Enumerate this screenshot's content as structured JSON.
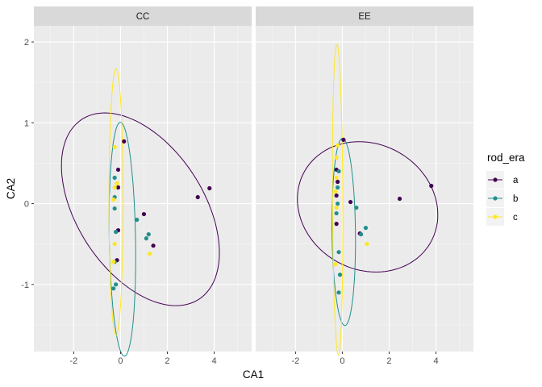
{
  "chart_data": {
    "type": "scatter",
    "xlabel": "CA1",
    "ylabel": "CA2",
    "xlim": [
      -3.7,
      5.6
    ],
    "ylim": [
      -1.83,
      2.2
    ],
    "xticks": [
      -2,
      0,
      2,
      4
    ],
    "yticks": [
      -1,
      0,
      1,
      2
    ],
    "grid": true,
    "legend": {
      "title": "rod_era",
      "position": "right"
    },
    "colors": {
      "a": "#440154",
      "b": "#21908C",
      "c": "#FDE725"
    },
    "series": [
      {
        "name": "a",
        "legend_label": "a"
      },
      {
        "name": "b",
        "legend_label": "b"
      },
      {
        "name": "c",
        "legend_label": "c"
      }
    ],
    "panels": [
      {
        "title": "CC",
        "points": {
          "a": [
            [
              0.15,
              0.77
            ],
            [
              -0.1,
              0.42
            ],
            [
              -0.1,
              0.2
            ],
            [
              -0.15,
              -0.7
            ],
            [
              3.8,
              0.19
            ],
            [
              3.3,
              0.08
            ],
            [
              1.4,
              -0.52
            ],
            [
              1.0,
              -0.13
            ],
            [
              -0.1,
              -0.33
            ]
          ],
          "b": [
            [
              -0.25,
              0.32
            ],
            [
              -0.25,
              0.08
            ],
            [
              -0.25,
              -0.06
            ],
            [
              -0.2,
              -0.35
            ],
            [
              0.7,
              -0.2
            ],
            [
              1.2,
              -0.38
            ],
            [
              1.1,
              -0.43
            ],
            [
              -0.2,
              -1.0
            ],
            [
              -0.3,
              -1.05
            ],
            [
              -0.25,
              -0.72
            ]
          ],
          "c": [
            [
              -0.25,
              0.7
            ],
            [
              -0.15,
              0.25
            ],
            [
              -0.25,
              0.2
            ],
            [
              -0.3,
              0.05
            ],
            [
              -0.25,
              -0.5
            ],
            [
              1.25,
              -0.62
            ],
            [
              -0.3,
              -0.72
            ]
          ]
        },
        "ellipses": {
          "a": {
            "cx": 0.85,
            "cy": -0.07,
            "rx": 3.42,
            "ry": 1.05,
            "angle_deg": -10
          },
          "b": {
            "cx": 0.08,
            "cy": -0.44,
            "rx": 1.45,
            "ry": 0.56,
            "angle_deg": -86
          },
          "c": {
            "cx": -0.19,
            "cy": 0.02,
            "rx": 1.65,
            "ry": 0.3,
            "angle_deg": -90
          }
        }
      },
      {
        "title": "EE",
        "points": {
          "a": [
            [
              0.05,
              0.79
            ],
            [
              -0.25,
              0.42
            ],
            [
              -0.2,
              0.27
            ],
            [
              -0.25,
              0.1
            ],
            [
              0.35,
              0.02
            ],
            [
              -0.25,
              -0.25
            ],
            [
              0.75,
              -0.37
            ],
            [
              3.8,
              0.22
            ],
            [
              2.45,
              0.06
            ]
          ],
          "b": [
            [
              -0.15,
              0.4
            ],
            [
              -0.2,
              0.2
            ],
            [
              -0.2,
              0.0
            ],
            [
              -0.25,
              -0.12
            ],
            [
              0.6,
              -0.05
            ],
            [
              1.0,
              -0.3
            ],
            [
              0.8,
              -0.38
            ],
            [
              -0.15,
              -0.6
            ],
            [
              -0.1,
              -0.88
            ],
            [
              -0.15,
              -1.1
            ]
          ],
          "c": [
            [
              -0.2,
              0.72
            ],
            [
              -0.25,
              0.57
            ],
            [
              -0.25,
              0.32
            ],
            [
              -0.3,
              0.15
            ],
            [
              -0.25,
              -0.05
            ],
            [
              1.05,
              -0.5
            ],
            [
              -0.3,
              -0.75
            ]
          ]
        },
        "ellipses": {
          "a": {
            "cx": 1.08,
            "cy": -0.04,
            "rx": 3.0,
            "ry": 0.8,
            "angle_deg": -2
          },
          "b": {
            "cx": 0.06,
            "cy": -0.35,
            "rx": 1.16,
            "ry": 0.5,
            "angle_deg": -87
          },
          "c": {
            "cx": -0.2,
            "cy": 0.05,
            "rx": 1.92,
            "ry": 0.22,
            "angle_deg": -89
          }
        }
      }
    ]
  }
}
